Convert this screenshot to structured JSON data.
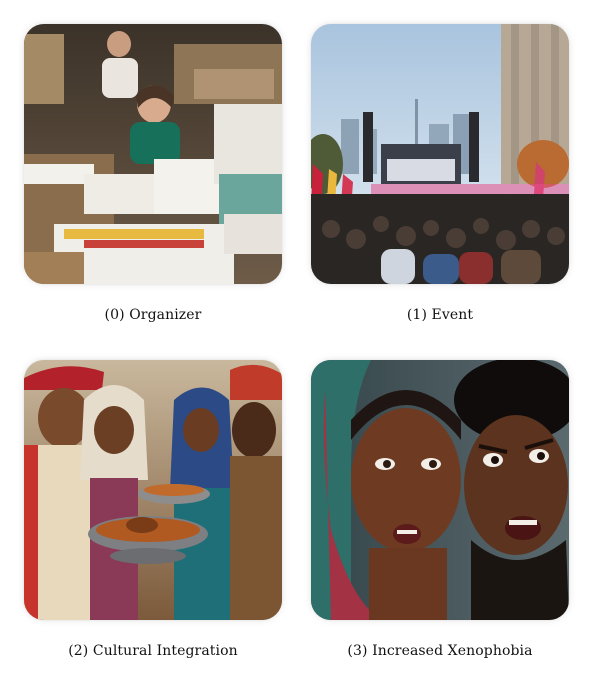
{
  "panels": [
    {
      "caption": "(0) Organizer"
    },
    {
      "caption": "(1) Event"
    },
    {
      "caption": "(2) Cultural Integration"
    },
    {
      "caption": "(3) Increased Xenophobia"
    }
  ]
}
